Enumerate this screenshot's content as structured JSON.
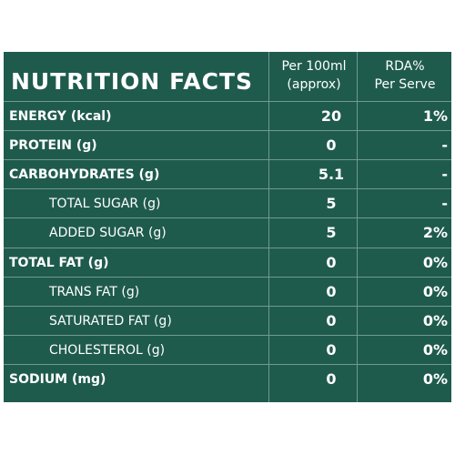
{
  "table": {
    "title": "NUTRITION FACTS",
    "col_per_line1": "Per 100ml",
    "col_per_line2": "(approx)",
    "col_rda_line1": "RDA%",
    "col_rda_line2": "Per Serve",
    "rows": [
      {
        "name": "ENERGY (kcal)",
        "value": "20",
        "rda": "1%",
        "type": "main"
      },
      {
        "name": "PROTEIN (g)",
        "value": "0",
        "rda": "-",
        "type": "main"
      },
      {
        "name": "CARBOHYDRATES (g)",
        "value": "5.1",
        "rda": "-",
        "type": "main"
      },
      {
        "name": "TOTAL SUGAR (g)",
        "value": "5",
        "rda": "-",
        "type": "sub"
      },
      {
        "name": "ADDED SUGAR (g)",
        "value": "5",
        "rda": "2%",
        "type": "sub"
      },
      {
        "name": "TOTAL FAT (g)",
        "value": "0",
        "rda": "0%",
        "type": "main"
      },
      {
        "name": "TRANS FAT (g)",
        "value": "0",
        "rda": "0%",
        "type": "sub"
      },
      {
        "name": "SATURATED FAT (g)",
        "value": "0",
        "rda": "0%",
        "type": "sub"
      },
      {
        "name": "CHOLESTEROL (g)",
        "value": "0",
        "rda": "0%",
        "type": "sub"
      },
      {
        "name": "SODIUM (mg)",
        "value": "0",
        "rda": "0%",
        "type": "main"
      }
    ],
    "colors": {
      "background": "#1f5b4d",
      "text": "#ffffff",
      "lines": "#6f9a90"
    }
  }
}
